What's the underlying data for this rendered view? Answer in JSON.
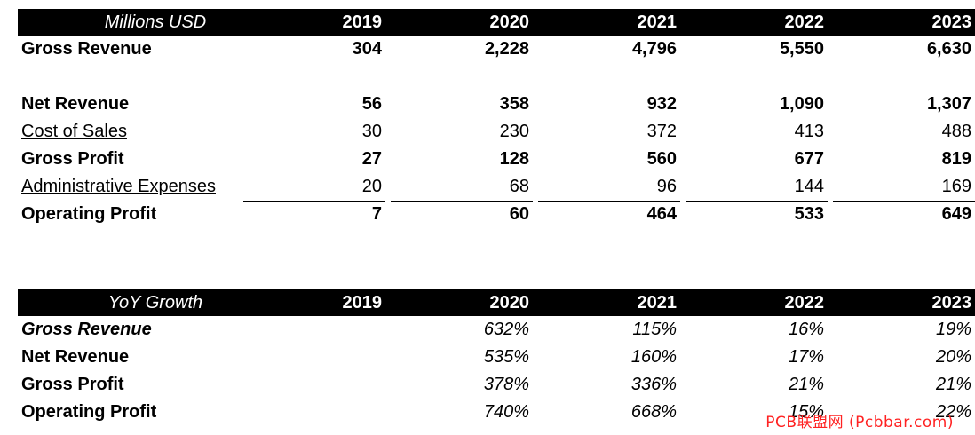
{
  "chart_data": [
    {
      "type": "table",
      "header_label": "Millions USD",
      "columns": [
        "2019",
        "2020",
        "2021",
        "2022",
        "2023"
      ],
      "rows": [
        {
          "label": "Gross Revenue",
          "values": [
            "304",
            "2,228",
            "4,796",
            "5,550",
            "6,630"
          ]
        },
        {
          "label": "Net Revenue",
          "values": [
            "56",
            "358",
            "932",
            "1,090",
            "1,307"
          ]
        },
        {
          "label": "Cost of Sales",
          "values": [
            "30",
            "230",
            "372",
            "413",
            "488"
          ]
        },
        {
          "label": "Gross Profit",
          "values": [
            "27",
            "128",
            "560",
            "677",
            "819"
          ]
        },
        {
          "label": "Administrative Expenses",
          "values": [
            "20",
            "68",
            "96",
            "144",
            "169"
          ]
        },
        {
          "label": "Operating Profit",
          "values": [
            "7",
            "60",
            "464",
            "533",
            "649"
          ]
        }
      ]
    },
    {
      "type": "table",
      "header_label": "YoY Growth",
      "columns": [
        "2019",
        "2020",
        "2021",
        "2022",
        "2023"
      ],
      "rows": [
        {
          "label": "Gross Revenue",
          "values": [
            "",
            "632%",
            "115%",
            "16%",
            "19%"
          ]
        },
        {
          "label": "Net Revenue",
          "values": [
            "",
            "535%",
            "160%",
            "17%",
            "20%"
          ]
        },
        {
          "label": "Gross Profit",
          "values": [
            "",
            "378%",
            "336%",
            "21%",
            "21%"
          ]
        },
        {
          "label": "Operating Profit",
          "values": [
            "",
            "740%",
            "668%",
            "15%",
            "22%"
          ]
        }
      ]
    }
  ],
  "watermark": "PCB联盟网 (Pcbbar.com)"
}
